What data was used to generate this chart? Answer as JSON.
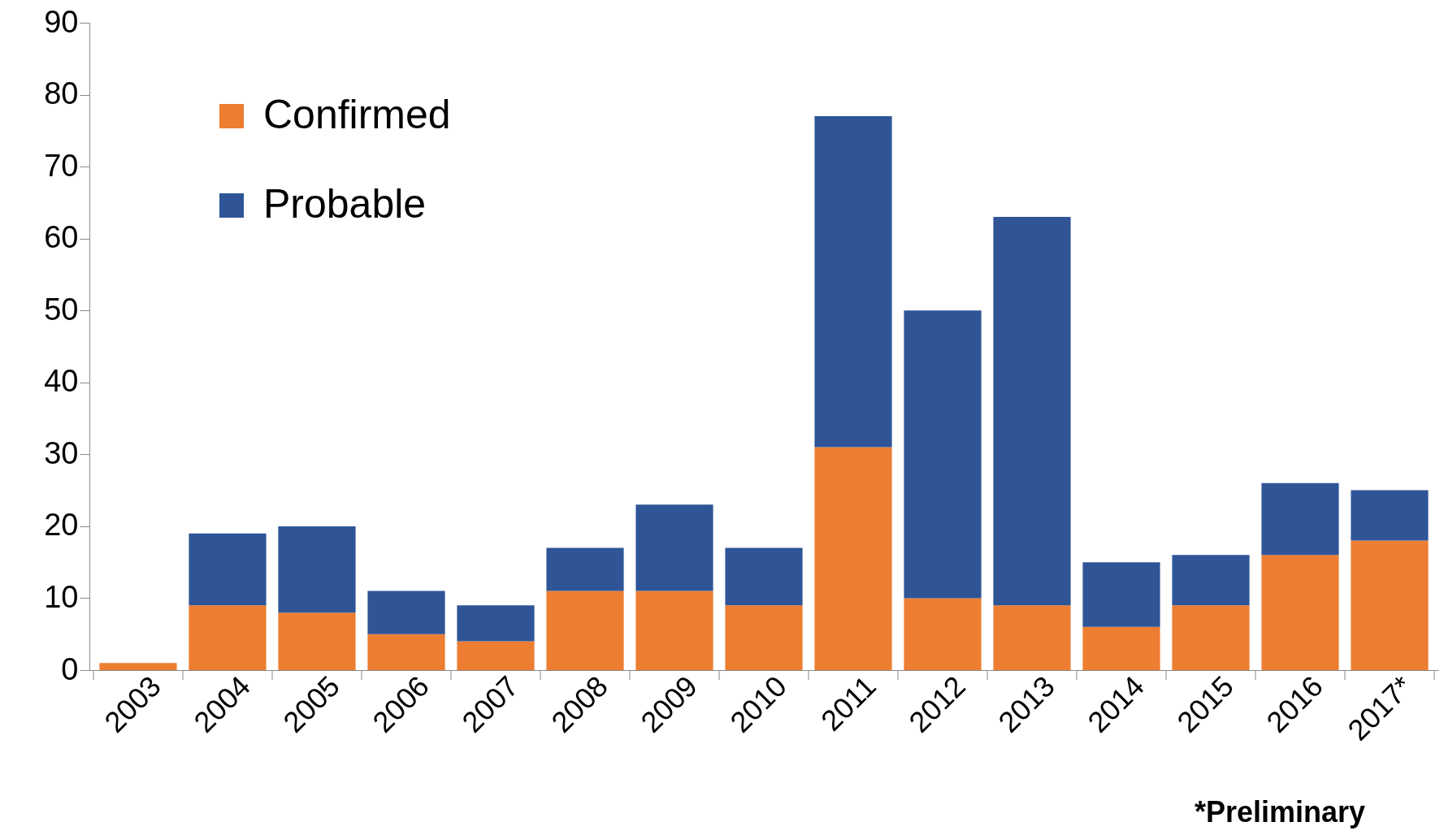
{
  "chart_data": {
    "type": "bar",
    "stacked": true,
    "categories": [
      "2003",
      "2004",
      "2005",
      "2006",
      "2007",
      "2008",
      "2009",
      "2010",
      "2011",
      "2012",
      "2013",
      "2014",
      "2015",
      "2016",
      "2017*"
    ],
    "series": [
      {
        "name": "Confirmed",
        "color": "#ed7d31",
        "values": [
          1,
          9,
          8,
          5,
          4,
          11,
          11,
          9,
          31,
          10,
          9,
          6,
          9,
          16,
          18
        ]
      },
      {
        "name": "Probable",
        "color": "#2f5597",
        "values": [
          0,
          10,
          12,
          6,
          5,
          6,
          12,
          8,
          46,
          40,
          54,
          9,
          7,
          10,
          7
        ]
      }
    ],
    "ylim": [
      0,
      90
    ],
    "yticks": [
      0,
      10,
      20,
      30,
      40,
      50,
      60,
      70,
      80,
      90
    ],
    "grid": false,
    "legend": "top left",
    "annotations": [
      "*Preliminary"
    ]
  }
}
